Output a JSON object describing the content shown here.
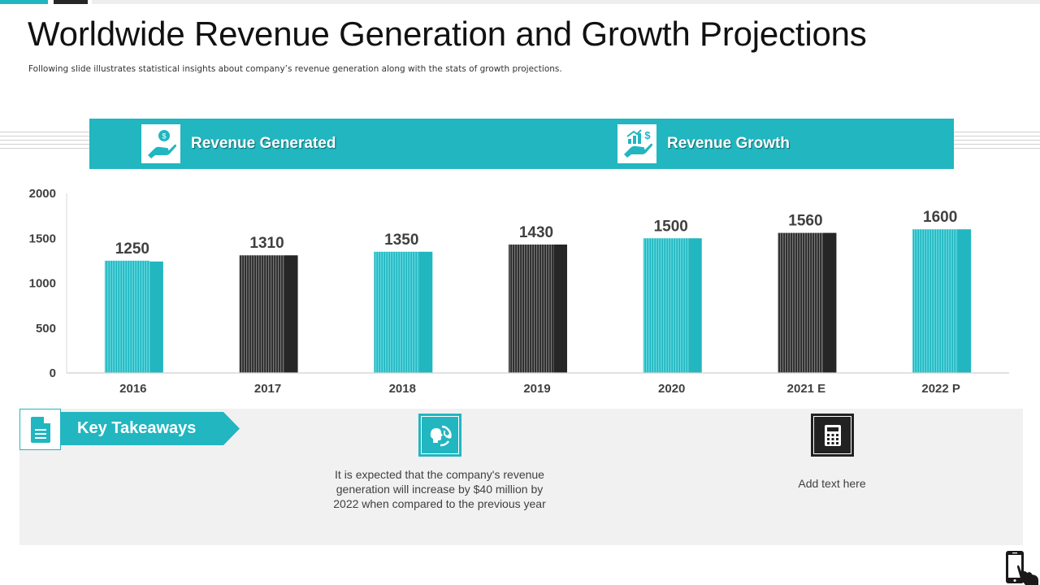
{
  "title": "Worldwide Revenue Generation and Growth Projections",
  "subtitle": "Following slide illustrates statistical insights about company’s revenue generation along with the stats of growth projections.",
  "colors": {
    "teal": "#21b6c0",
    "teal_light": "#48d0d8",
    "dark": "#262626",
    "dark_stripe": "#6e6e6e",
    "panel": "#f1f1f1",
    "axis_text": "#404040"
  },
  "header_band": {
    "left": {
      "label": "Revenue Generated",
      "icon": "hand-coin-icon"
    },
    "right": {
      "label": "Revenue Growth",
      "icon": "hand-growth-chart-icon"
    }
  },
  "chart_data": {
    "type": "bar",
    "title": "",
    "xlabel": "",
    "ylabel": "",
    "categories": [
      "2016",
      "2017",
      "2018",
      "2019",
      "2020",
      "2021 E",
      "2022 P"
    ],
    "values": [
      1250,
      1310,
      1350,
      1430,
      1500,
      1560,
      1600
    ],
    "bar_colors": [
      "teal",
      "dark",
      "teal",
      "dark",
      "teal",
      "dark",
      "teal"
    ],
    "ylim": [
      0,
      2000
    ],
    "yticks": [
      0,
      500,
      1000,
      1500,
      2000
    ],
    "grid": false,
    "legend": "none",
    "data_labels": true
  },
  "key_takeaways": {
    "label": "Key Takeaways",
    "icon": "document-icon",
    "items": [
      {
        "icon": "head-clock-cycle-icon",
        "text": "It is expected that the company's revenue generation will increase by $40 million by 2022 when compared to the previous year"
      },
      {
        "icon": "calculator-icon",
        "text": "Add text here"
      }
    ]
  },
  "corner": {
    "icon": "phone-touch-icon"
  }
}
